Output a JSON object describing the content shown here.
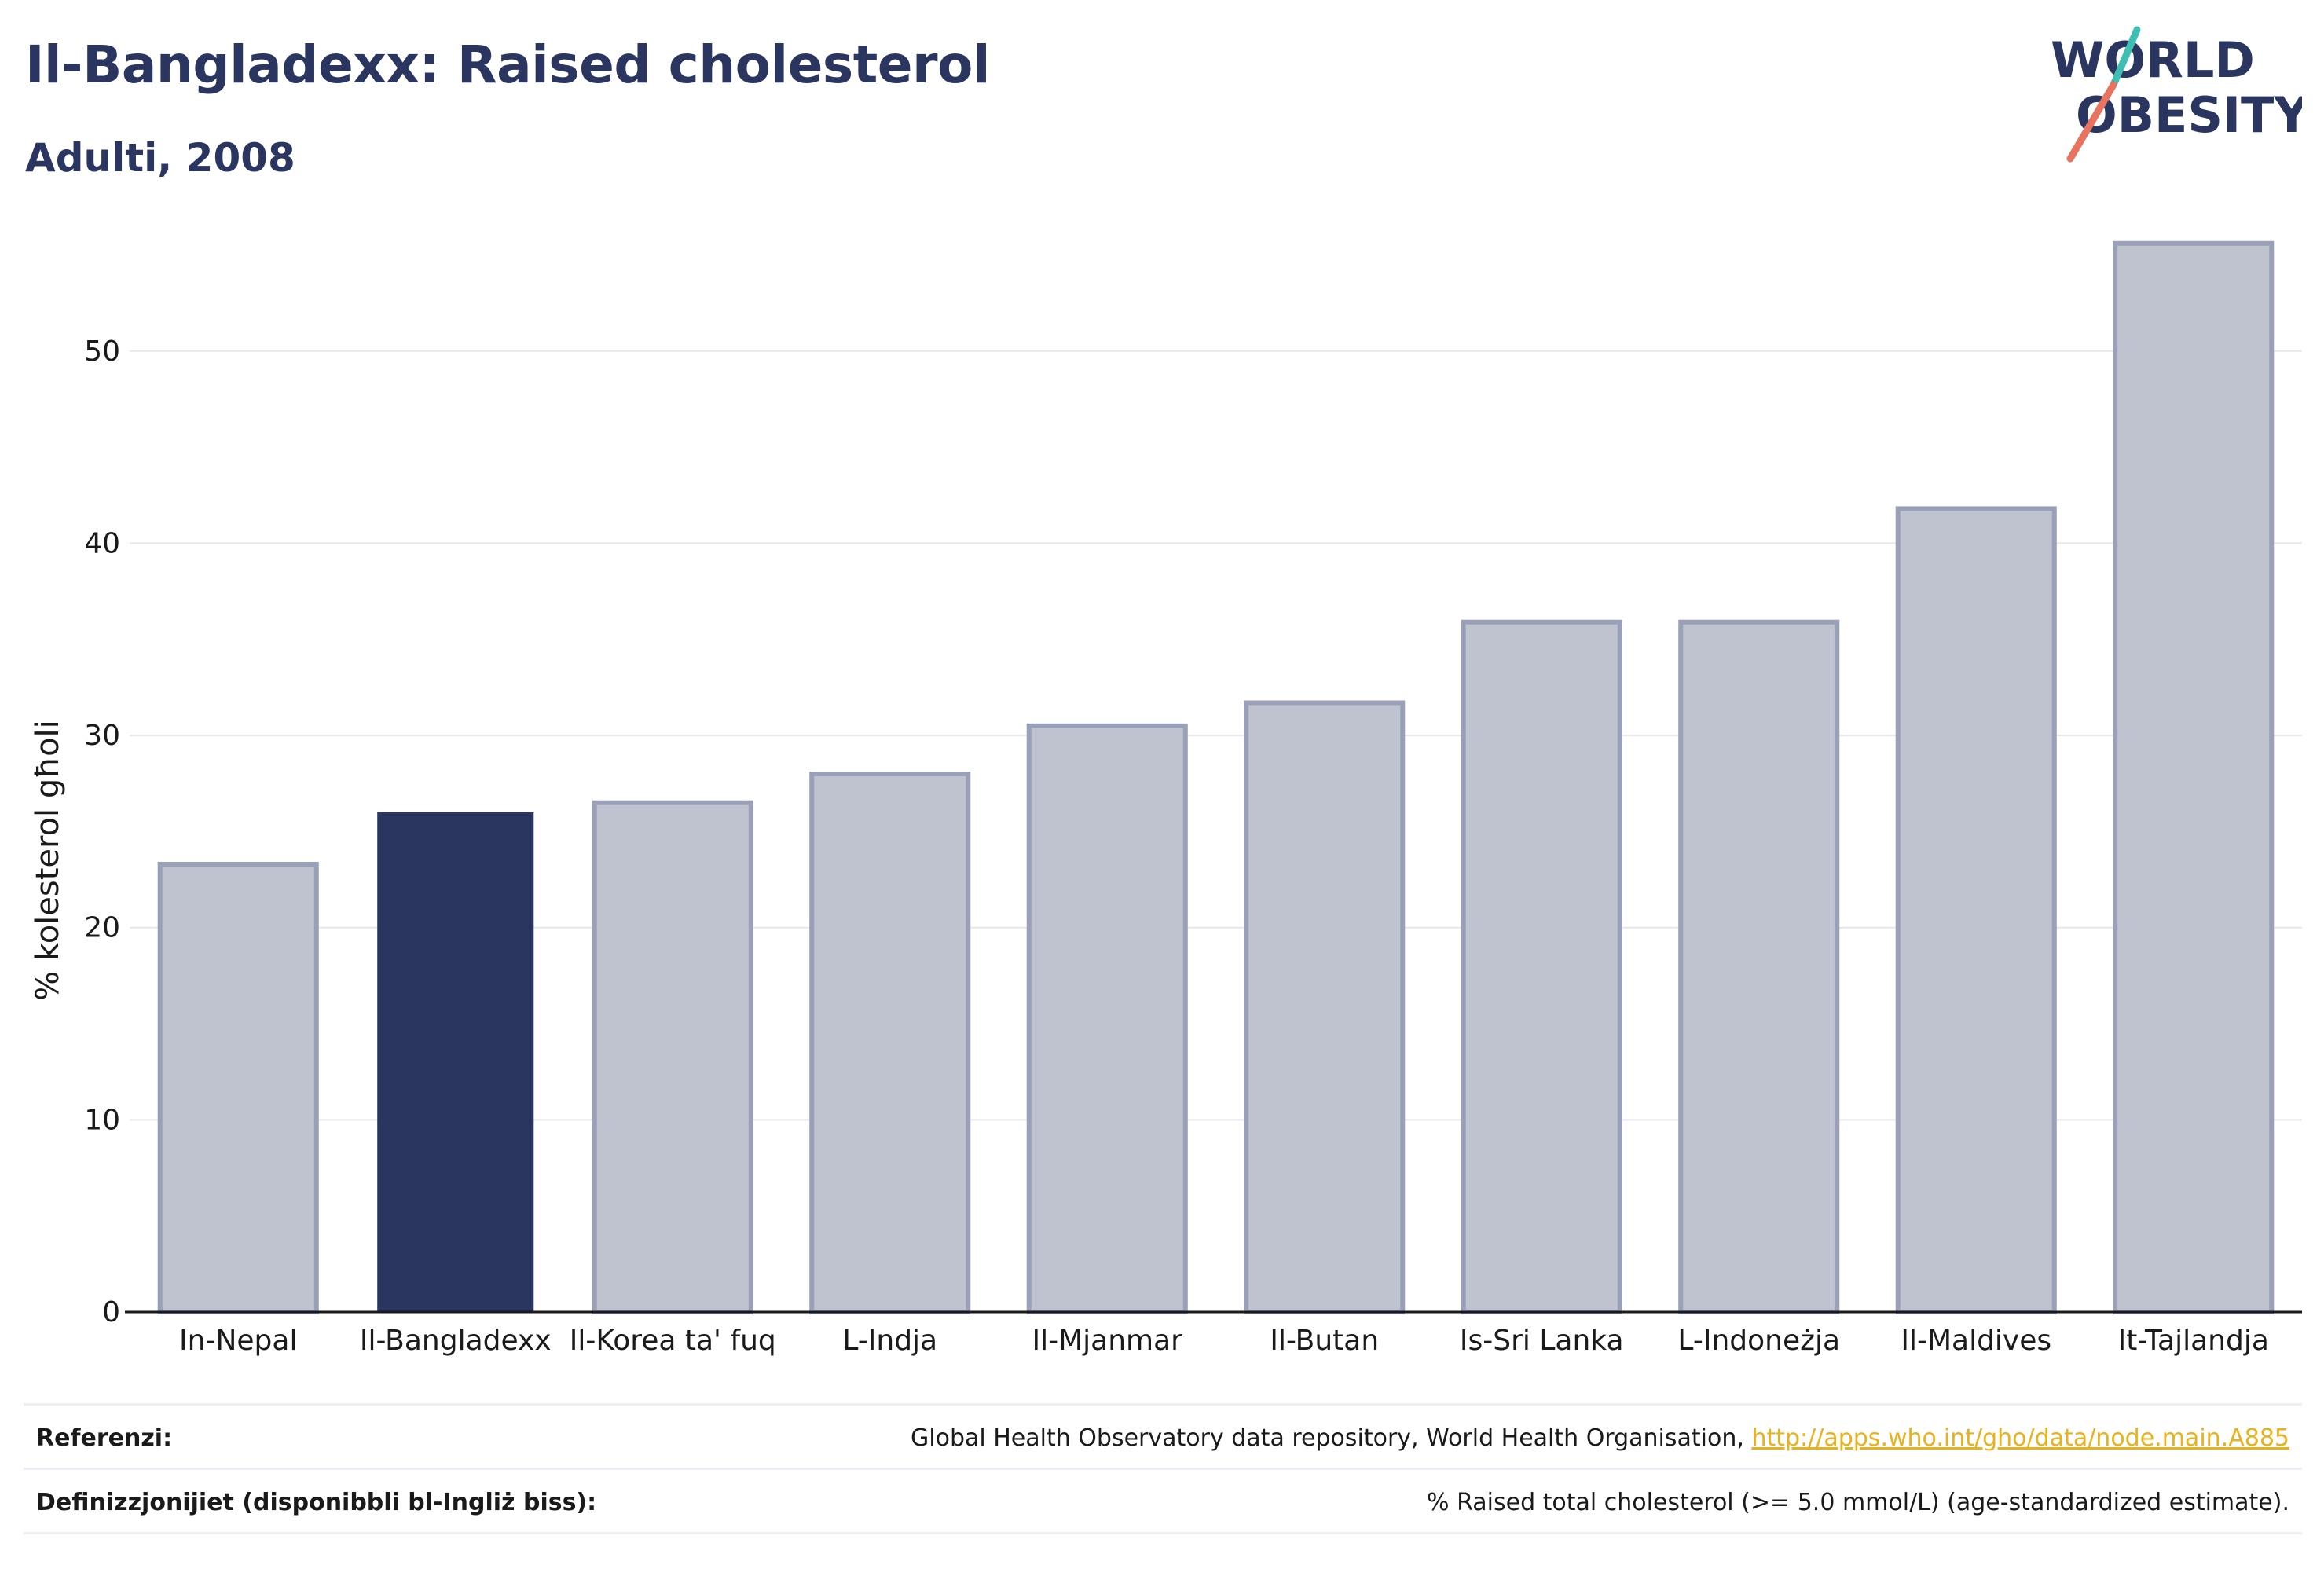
{
  "title": "Il-Bangladexx: Raised cholesterol",
  "subtitle": "Adulti, 2008",
  "logo": {
    "line1": "WORLD",
    "line2": "OBESITY"
  },
  "colors": {
    "highlight": "#2a365f",
    "bar_fill": "#bfc3cf",
    "bar_stroke": "#9aa0b8",
    "accent_teal": "#3fbfb4",
    "accent_red": "#e8735f",
    "link": "#e8b21c"
  },
  "chart_data": {
    "type": "bar",
    "categories": [
      "In-Nepal",
      "Il-Bangladexx",
      "Il-Korea ta' fuq",
      "L-Indja",
      "Il-Mjanmar",
      "Il-Butan",
      "Is-Sri Lanka",
      "L-Indoneżja",
      "Il-Maldives",
      "It-Tajlandja"
    ],
    "values": [
      23.3,
      26.0,
      26.5,
      28.0,
      30.5,
      31.7,
      35.9,
      35.9,
      41.8,
      55.6
    ],
    "highlight_index": 1,
    "ylabel": "% kolesterol għoli",
    "xlabel": "",
    "ylim": [
      0,
      56
    ],
    "yticks": [
      0,
      10,
      20,
      30,
      40,
      50
    ],
    "grid": true
  },
  "footer": {
    "references_label": "Referenzi:",
    "references_text": "Global Health Observatory data repository, World Health Organisation, ",
    "references_link": "http://apps.who.int/gho/data/node.main.A885",
    "definitions_label": "Definizzjonijiet (disponibbli bl-Ingliż biss):",
    "definitions_text": "% Raised total cholesterol (>= 5.0 mmol/L) (age-standardized estimate)."
  }
}
